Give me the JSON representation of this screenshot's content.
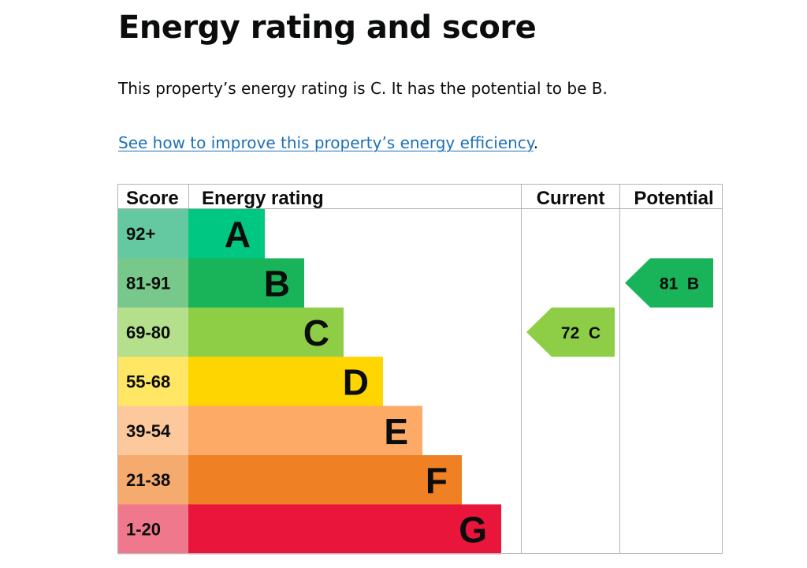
{
  "page": {
    "title": "Energy rating and score",
    "summary": "This property’s energy rating is C. It has the potential to be B.",
    "link_text": "See how to improve this property’s energy efficiency",
    "link_suffix": "."
  },
  "table": {
    "headers": {
      "score": "Score",
      "rating": "Energy rating",
      "current": "Current",
      "potential": "Potential"
    },
    "bands": [
      {
        "score": "92+",
        "letter": "A",
        "color": "#00c781",
        "score_bg": "#64c8a0"
      },
      {
        "score": "81-91",
        "letter": "B",
        "color": "#19b459",
        "score_bg": "#78c88c"
      },
      {
        "score": "69-80",
        "letter": "C",
        "color": "#8dce46",
        "score_bg": "#b4e08c"
      },
      {
        "score": "55-68",
        "letter": "D",
        "color": "#ffd500",
        "score_bg": "#ffe664"
      },
      {
        "score": "39-54",
        "letter": "E",
        "color": "#fcaa65",
        "score_bg": "#fdc89b"
      },
      {
        "score": "21-38",
        "letter": "F",
        "color": "#ef8023",
        "score_bg": "#f5aa6e"
      },
      {
        "score": "1-20",
        "letter": "G",
        "color": "#e9153b",
        "score_bg": "#f0788c"
      }
    ],
    "current": {
      "score": "72",
      "letter": "C",
      "band_index": 2,
      "color": "#8dce46"
    },
    "potential": {
      "score": "81",
      "letter": "B",
      "band_index": 1,
      "color": "#19b459"
    }
  }
}
